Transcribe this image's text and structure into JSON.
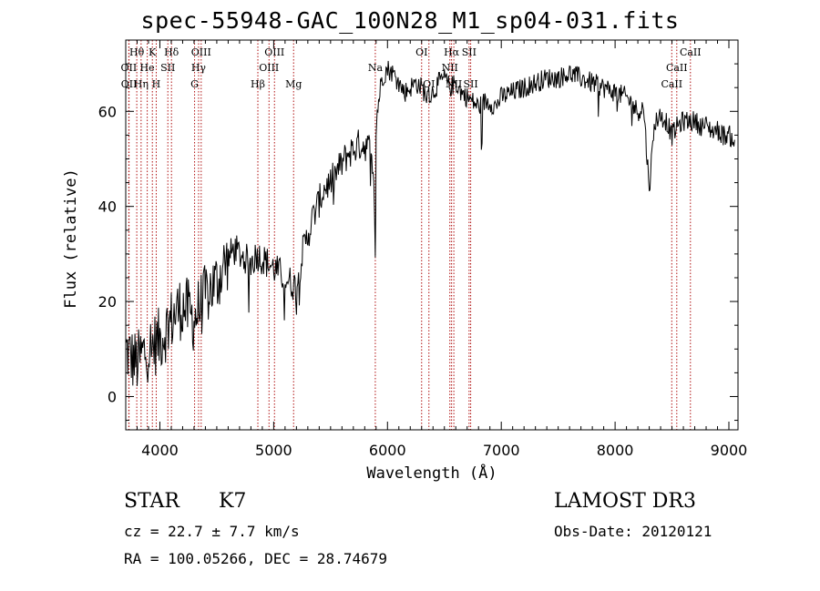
{
  "colors": {
    "background": "#ffffff",
    "spectrum": "#000000",
    "line_marker": "#b01010"
  },
  "chart_data": {
    "type": "line",
    "title": "spec-55948-GAC_100N28_M1_sp04-031.fits",
    "xlabel": "Wavelength (Å)",
    "ylabel": "Flux (relative)",
    "xlim": [
      3700,
      9080
    ],
    "ylim": [
      -7,
      75
    ],
    "xticks": [
      4000,
      5000,
      6000,
      7000,
      8000,
      9000
    ],
    "yticks": [
      0,
      20,
      40,
      60
    ],
    "grid": false,
    "series": [
      {
        "name": "spectrum",
        "x": [
          3700,
          3750,
          3800,
          3850,
          3900,
          3950,
          4000,
          4050,
          4100,
          4150,
          4200,
          4250,
          4300,
          4350,
          4400,
          4450,
          4500,
          4550,
          4600,
          4650,
          4700,
          4750,
          4800,
          4850,
          4900,
          4950,
          5000,
          5050,
          5100,
          5150,
          5200,
          5250,
          5300,
          5350,
          5400,
          5450,
          5500,
          5550,
          5600,
          5650,
          5700,
          5750,
          5800,
          5850,
          5880,
          5893,
          5900,
          5910,
          5950,
          6000,
          6050,
          6100,
          6150,
          6200,
          6250,
          6300,
          6350,
          6400,
          6450,
          6500,
          6550,
          6600,
          6650,
          6700,
          6750,
          6800,
          6850,
          6900,
          6950,
          7000,
          7100,
          7200,
          7300,
          7400,
          7500,
          7600,
          7700,
          7800,
          7900,
          8000,
          8100,
          8200,
          8250,
          8300,
          8350,
          8400,
          8450,
          8500,
          8550,
          8600,
          8650,
          8700,
          8750,
          8800,
          8850,
          8900,
          8950,
          9000,
          9050
        ],
        "y": [
          10,
          8,
          7,
          9,
          10,
          11,
          12,
          14,
          16,
          18,
          19,
          18,
          16,
          19,
          21,
          23,
          24,
          27,
          29,
          31,
          30,
          29,
          28,
          30,
          29,
          28,
          27,
          26,
          25,
          24,
          23,
          30,
          34,
          38,
          41,
          44,
          45,
          47,
          49,
          51,
          52,
          53,
          53,
          52,
          48,
          30,
          55,
          60,
          67,
          69,
          68,
          66,
          64,
          65,
          66,
          65,
          63,
          64,
          66,
          67,
          65,
          66,
          64,
          63,
          62,
          61,
          62,
          62,
          61,
          63,
          64,
          65,
          66,
          67,
          67,
          68,
          67,
          66,
          65,
          64,
          63,
          60,
          61,
          44,
          58,
          59,
          58,
          55,
          57,
          58,
          58,
          58,
          57,
          57,
          56,
          56,
          55,
          55,
          54
        ]
      }
    ],
    "line_markers": [
      {
        "name": "Hθ",
        "wavelength": 3797,
        "row": 1
      },
      {
        "name": "OII",
        "wavelength": 3727,
        "row": 2
      },
      {
        "name": "OII",
        "wavelength": 3729,
        "row": 3
      },
      {
        "name": "K",
        "wavelength": 3934,
        "row": 1
      },
      {
        "name": "He",
        "wavelength": 3889,
        "row": 2
      },
      {
        "name": "Hη",
        "wavelength": 3835,
        "row": 3
      },
      {
        "name": "Hδ",
        "wavelength": 4102,
        "row": 1
      },
      {
        "name": "SII",
        "wavelength": 4070,
        "row": 2
      },
      {
        "name": "H",
        "wavelength": 3968,
        "row": 3
      },
      {
        "name": "OIII",
        "wavelength": 4363,
        "row": 1
      },
      {
        "name": "Hγ",
        "wavelength": 4340,
        "row": 2
      },
      {
        "name": "G",
        "wavelength": 4305,
        "row": 3
      },
      {
        "name": "OIII",
        "wavelength": 5007,
        "row": 1
      },
      {
        "name": "OIII",
        "wavelength": 4959,
        "row": 2
      },
      {
        "name": "Hβ",
        "wavelength": 4861,
        "row": 3
      },
      {
        "name": "Mg",
        "wavelength": 5175,
        "row": 3
      },
      {
        "name": "Na",
        "wavelength": 5893,
        "row": 2
      },
      {
        "name": "OI",
        "wavelength": 6300,
        "row": 1
      },
      {
        "name": "OI",
        "wavelength": 6364,
        "row": 3
      },
      {
        "name": "Hα",
        "wavelength": 6563,
        "row": 1
      },
      {
        "name": "SII",
        "wavelength": 6717,
        "row": 1
      },
      {
        "name": "NII",
        "wavelength": 6548,
        "row": 2
      },
      {
        "name": "NII",
        "wavelength": 6583,
        "row": 3
      },
      {
        "name": "SII",
        "wavelength": 6731,
        "row": 3
      },
      {
        "name": "CaII",
        "wavelength": 8662,
        "row": 1
      },
      {
        "name": "CaII",
        "wavelength": 8542,
        "row": 2
      },
      {
        "name": "CaII",
        "wavelength": 8498,
        "row": 3
      }
    ]
  },
  "info": {
    "object_type": "STAR",
    "subclass": "K7",
    "cz": "cz = 22.7 ± 7.7 km/s",
    "radec": "RA = 100.05266, DEC =  28.74679",
    "survey": "LAMOST DR3",
    "obs_date": "Obs-Date: 20120121"
  }
}
